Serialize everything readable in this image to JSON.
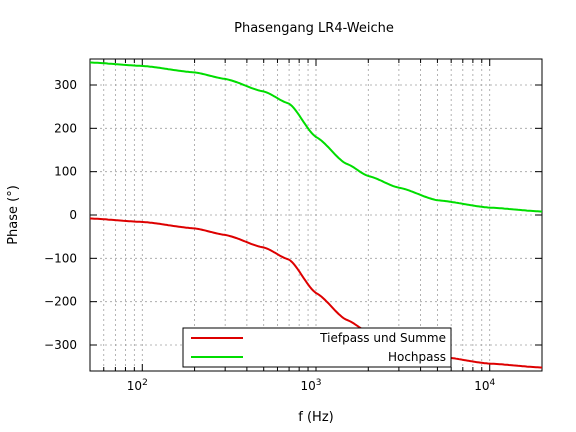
{
  "chart_data": {
    "type": "line",
    "title": "Phasengang LR4-Weiche",
    "xlabel": "f (Hz)",
    "ylabel": "Phase (°)",
    "xscale": "log",
    "xlim": [
      50,
      20000
    ],
    "ylim": [
      -360,
      360
    ],
    "x_ticks": [
      {
        "value": 100,
        "base": "10",
        "exp": "2"
      },
      {
        "value": 1000,
        "base": "10",
        "exp": "3"
      },
      {
        "value": 10000,
        "base": "10",
        "exp": "4"
      }
    ],
    "y_ticks": [
      -300,
      -200,
      -100,
      0,
      100,
      200,
      300
    ],
    "y_tick_labels": [
      "−300",
      "−200",
      "−100",
      "0",
      "100",
      "200",
      "300"
    ],
    "grid": true,
    "legend_position": "bottom-center",
    "crossover_hz": 1000,
    "series": [
      {
        "name": "Tiefpass und Summe",
        "color": "#dd0000",
        "x": [
          50,
          100,
          200,
          300,
          500,
          700,
          1000,
          1500,
          2000,
          3000,
          5000,
          10000,
          20000
        ],
        "y": [
          -8,
          -16,
          -31,
          -46,
          -75,
          -103,
          -180,
          -242,
          -270,
          -297,
          -326,
          -343,
          -352
        ]
      },
      {
        "name": "Hochpass",
        "color": "#00dd00",
        "x": [
          50,
          100,
          200,
          300,
          500,
          700,
          1000,
          1500,
          2000,
          3000,
          5000,
          10000,
          20000
        ],
        "y": [
          352,
          344,
          329,
          314,
          285,
          257,
          180,
          118,
          90,
          63,
          34,
          17,
          8
        ]
      }
    ]
  }
}
